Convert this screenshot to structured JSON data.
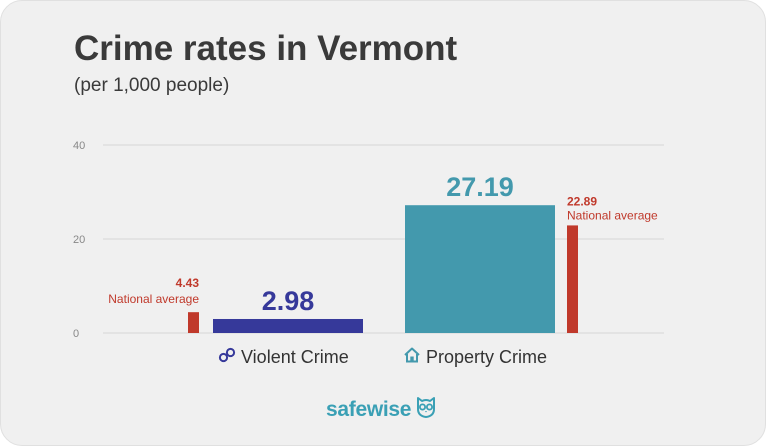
{
  "title": "Crime rates in Vermont",
  "subtitle": "(per 1,000 people)",
  "brand": {
    "name": "safewise",
    "logo_icon": "owl-icon"
  },
  "colors": {
    "violent": "#36399a",
    "property": "#4399ad",
    "national": "#c0392b",
    "grid": "#d6d6d6",
    "tick": "#888888",
    "title": "#3a3a3a"
  },
  "chart_data": {
    "type": "bar",
    "title": "Crime rates in Vermont",
    "subtitle": "(per 1,000 people)",
    "ylim": [
      0,
      40
    ],
    "yticks": [
      0,
      20,
      40
    ],
    "grid": true,
    "categories": [
      {
        "name": "Violent Crime",
        "icon": "handcuffs-icon",
        "value": 2.98,
        "value_label": "2.98",
        "national_value": 4.43,
        "national_value_label": "4.43",
        "national_label": "National average",
        "national_side": "left"
      },
      {
        "name": "Property Crime",
        "icon": "house-icon",
        "value": 27.19,
        "value_label": "27.19",
        "national_value": 22.89,
        "national_value_label": "22.89",
        "national_label": "National average",
        "national_side": "right"
      }
    ]
  }
}
